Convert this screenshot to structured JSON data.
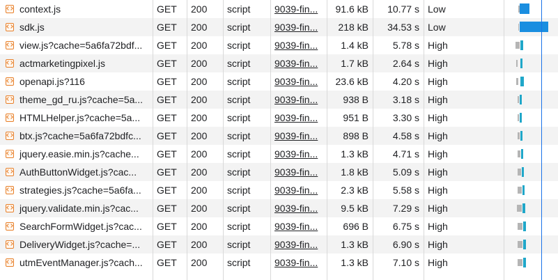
{
  "network": {
    "rows": [
      {
        "name": "context.js",
        "method": "GET",
        "status": "200",
        "type": "script",
        "initiator": "9039-fin...",
        "size": "91.6 kB",
        "time": "10.77 s",
        "priority": "Low"
      },
      {
        "name": "sdk.js",
        "method": "GET",
        "status": "200",
        "type": "script",
        "initiator": "9039-fin...",
        "size": "218 kB",
        "time": "34.53 s",
        "priority": "Low"
      },
      {
        "name": "view.js?cache=5a6fa72bdf...",
        "method": "GET",
        "status": "200",
        "type": "script",
        "initiator": "9039-fin...",
        "size": "1.4 kB",
        "time": "5.78 s",
        "priority": "High"
      },
      {
        "name": "actmarketingpixel.js",
        "method": "GET",
        "status": "200",
        "type": "script",
        "initiator": "9039-fin...",
        "size": "1.7 kB",
        "time": "2.64 s",
        "priority": "High"
      },
      {
        "name": "openapi.js?116",
        "method": "GET",
        "status": "200",
        "type": "script",
        "initiator": "9039-fin...",
        "size": "23.6 kB",
        "time": "4.20 s",
        "priority": "High"
      },
      {
        "name": "theme_gd_ru.js?cache=5a...",
        "method": "GET",
        "status": "200",
        "type": "script",
        "initiator": "9039-fin...",
        "size": "938 B",
        "time": "3.18 s",
        "priority": "High"
      },
      {
        "name": "HTMLHelper.js?cache=5a...",
        "method": "GET",
        "status": "200",
        "type": "script",
        "initiator": "9039-fin...",
        "size": "951 B",
        "time": "3.30 s",
        "priority": "High"
      },
      {
        "name": "btx.js?cache=5a6fa72bdfc...",
        "method": "GET",
        "status": "200",
        "type": "script",
        "initiator": "9039-fin...",
        "size": "898 B",
        "time": "4.58 s",
        "priority": "High"
      },
      {
        "name": "jquery.easie.min.js?cache...",
        "method": "GET",
        "status": "200",
        "type": "script",
        "initiator": "9039-fin...",
        "size": "1.3 kB",
        "time": "4.71 s",
        "priority": "High"
      },
      {
        "name": "AuthButtonWidget.js?cac...",
        "method": "GET",
        "status": "200",
        "type": "script",
        "initiator": "9039-fin...",
        "size": "1.8 kB",
        "time": "5.09 s",
        "priority": "High"
      },
      {
        "name": "strategies.js?cache=5a6fa...",
        "method": "GET",
        "status": "200",
        "type": "script",
        "initiator": "9039-fin...",
        "size": "2.3 kB",
        "time": "5.58 s",
        "priority": "High"
      },
      {
        "name": "jquery.validate.min.js?cac...",
        "method": "GET",
        "status": "200",
        "type": "script",
        "initiator": "9039-fin...",
        "size": "9.5 kB",
        "time": "7.29 s",
        "priority": "High"
      },
      {
        "name": "SearchFormWidget.js?cac...",
        "method": "GET",
        "status": "200",
        "type": "script",
        "initiator": "9039-fin...",
        "size": "696 B",
        "time": "6.75 s",
        "priority": "High"
      },
      {
        "name": "DeliveryWidget.js?cache=...",
        "method": "GET",
        "status": "200",
        "type": "script",
        "initiator": "9039-fin...",
        "size": "1.3 kB",
        "time": "6.90 s",
        "priority": "High"
      },
      {
        "name": "utmEventManager.js?cach...",
        "method": "GET",
        "status": "200",
        "type": "script",
        "initiator": "9039-fin...",
        "size": "1.3 kB",
        "time": "7.10 s",
        "priority": "High"
      }
    ]
  },
  "colors": {
    "script_icon": "#e8802a",
    "waterfall_waiting": "#b5b5b5",
    "waterfall_download": "#1a8ee0",
    "waterfall_ttfb": "#20a7c9",
    "marker_line": "#1a73e8",
    "row_alt": "#f3f3f3"
  },
  "icons": {
    "script_type": "script-file-icon"
  }
}
